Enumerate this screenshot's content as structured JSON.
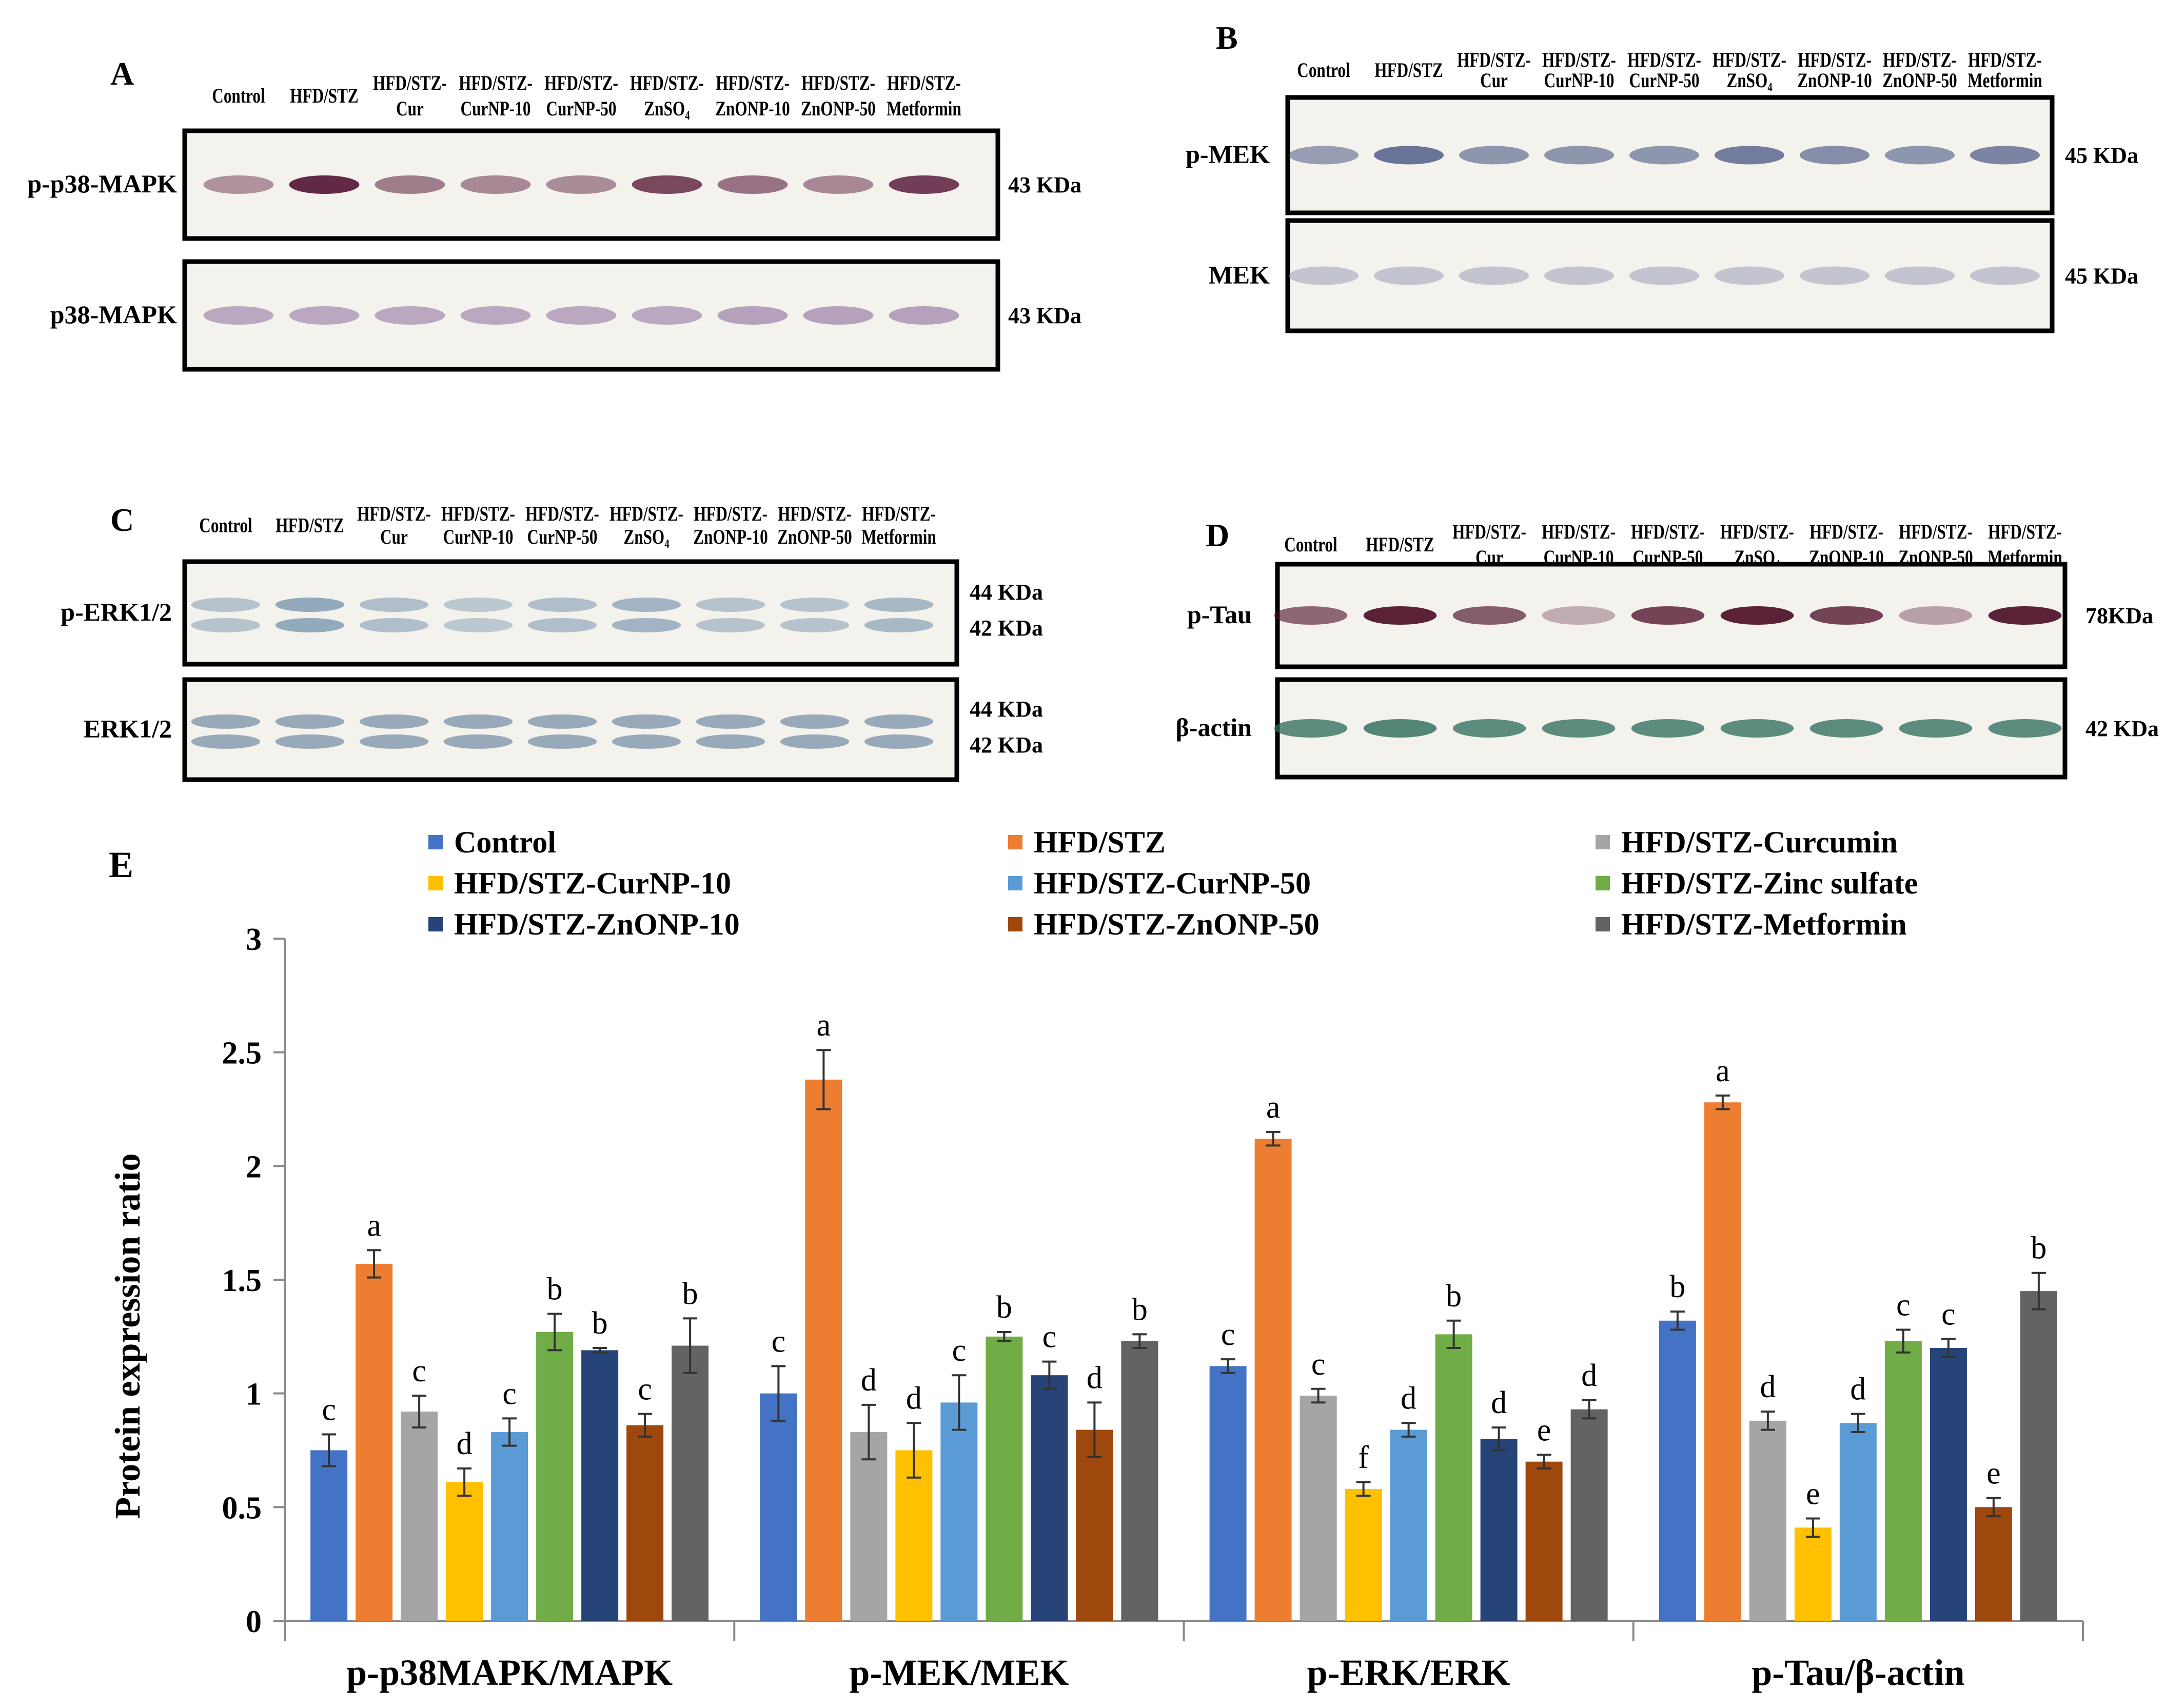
{
  "blots": {
    "A": {
      "letter": "A",
      "lanes": [
        [
          "Control"
        ],
        [
          "HFD/STZ"
        ],
        [
          "HFD/STZ-",
          "Cur"
        ],
        [
          "HFD/STZ-",
          "CurNP-10"
        ],
        [
          "HFD/STZ-",
          "CurNP-50"
        ],
        [
          "HFD/STZ-",
          "ZnSO₄"
        ],
        [
          "HFD/STZ-",
          "ZnONP-10"
        ],
        [
          "HFD/STZ-",
          "ZnONP-50"
        ],
        [
          "HFD/STZ-",
          "Metformin"
        ]
      ],
      "rows": [
        {
          "label": "p-p38-MAPK",
          "sizes": [
            "43 KDa"
          ],
          "band_color": "#5a1d3c",
          "band_intensity": [
            0.45,
            0.95,
            0.55,
            0.5,
            0.48,
            0.8,
            0.6,
            0.5,
            0.85
          ]
        },
        {
          "label": "p38-MAPK",
          "sizes": [
            "43 KDa"
          ],
          "band_color": "#8a6a9c",
          "band_intensity": [
            0.55,
            0.55,
            0.55,
            0.55,
            0.55,
            0.55,
            0.6,
            0.6,
            0.6
          ]
        }
      ]
    },
    "B": {
      "letter": "B",
      "lanes": [
        [
          "Control"
        ],
        [
          "HFD/STZ"
        ],
        [
          "HFD/STZ-",
          "Cur"
        ],
        [
          "HFD/STZ-",
          "CurNP-10"
        ],
        [
          "HFD/STZ-",
          "CurNP-50"
        ],
        [
          "HFD/STZ-",
          "ZnSO₄"
        ],
        [
          "HFD/STZ-",
          "ZnONP-10"
        ],
        [
          "HFD/STZ-",
          "ZnONP-50"
        ],
        [
          "HFD/STZ-",
          "Metformin"
        ]
      ],
      "rows": [
        {
          "label": "p-MEK",
          "sizes": [
            "45 KDa"
          ],
          "band_color": "#3a4a7c",
          "band_intensity": [
            0.5,
            0.75,
            0.55,
            0.55,
            0.55,
            0.7,
            0.6,
            0.55,
            0.65
          ]
        },
        {
          "label": "MEK",
          "sizes": [
            "45 KDa"
          ],
          "band_color": "#8a8ab0",
          "band_intensity": [
            0.45,
            0.45,
            0.45,
            0.45,
            0.45,
            0.45,
            0.45,
            0.45,
            0.45
          ]
        }
      ]
    },
    "C": {
      "letter": "C",
      "lanes": [
        [
          "Control"
        ],
        [
          "HFD/STZ"
        ],
        [
          "HFD/STZ-",
          "Cur"
        ],
        [
          "HFD/STZ-",
          "CurNP-10"
        ],
        [
          "HFD/STZ-",
          "CurNP-50"
        ],
        [
          "HFD/STZ-",
          "ZnSO₄"
        ],
        [
          "HFD/STZ-",
          "ZnONP-10"
        ],
        [
          "HFD/STZ-",
          "ZnONP-50"
        ],
        [
          "HFD/STZ-",
          "Metformin"
        ]
      ],
      "rows": [
        {
          "label": "p-ERK1/2",
          "sizes": [
            "44 KDa",
            "42 KDa"
          ],
          "band_color": "#6a8aa8",
          "band_intensity": [
            0.45,
            0.7,
            0.5,
            0.4,
            0.5,
            0.6,
            0.45,
            0.45,
            0.55
          ]
        },
        {
          "label": "ERK1/2",
          "sizes": [
            "44 KDa",
            "42 KDa"
          ],
          "band_color": "#5a7a98",
          "band_intensity": [
            0.6,
            0.6,
            0.6,
            0.6,
            0.6,
            0.6,
            0.6,
            0.6,
            0.6
          ]
        }
      ]
    },
    "D": {
      "letter": "D",
      "lanes": [
        [
          "Control"
        ],
        [
          "HFD/STZ"
        ],
        [
          "HFD/STZ-",
          "Cur"
        ],
        [
          "HFD/STZ-",
          "CurNP-10"
        ],
        [
          "HFD/STZ-",
          "CurNP-50"
        ],
        [
          "HFD/STZ-",
          "ZnSO₄"
        ],
        [
          "HFD/STZ-",
          "ZnONP-10"
        ],
        [
          "HFD/STZ-",
          "ZnONP-50"
        ],
        [
          "HFD/STZ-",
          "Metformin"
        ]
      ],
      "rows": [
        {
          "label": "p-Tau",
          "sizes": [
            "78KDa"
          ],
          "band_color": "#4a0a24",
          "band_intensity": [
            0.6,
            0.9,
            0.65,
            0.3,
            0.75,
            0.9,
            0.75,
            0.35,
            0.9
          ]
        },
        {
          "label": "β-actin",
          "sizes": [
            "42 KDa"
          ],
          "band_color": "#2a6a5a",
          "band_intensity": [
            0.75,
            0.8,
            0.75,
            0.75,
            0.75,
            0.75,
            0.75,
            0.75,
            0.75
          ]
        }
      ]
    }
  },
  "chart_data": {
    "type": "bar",
    "panel_letter": "E",
    "title": "",
    "xlabel": "",
    "ylabel": "Protein expression  ratio",
    "ylim": [
      0,
      3
    ],
    "yticks": [
      0,
      0.5,
      1,
      1.5,
      2,
      2.5,
      3
    ],
    "ytick_labels": [
      "0",
      "0.5",
      "1",
      "1.5",
      "2",
      "2.5",
      "3"
    ],
    "grid": false,
    "legend_position": "top",
    "categories": [
      "p-p38MAPK/MAPK",
      "p-MEK/MEK",
      "p-ERK/ERK",
      "p-Tau/β-actin"
    ],
    "series": [
      {
        "name": "Control",
        "color": "#4472c4",
        "values": [
          0.75,
          1.0,
          1.12,
          1.32
        ],
        "errors": [
          0.07,
          0.12,
          0.03,
          0.04
        ],
        "letters": [
          "c",
          "c",
          "c",
          "b"
        ]
      },
      {
        "name": "HFD/STZ",
        "color": "#ed7d31",
        "values": [
          1.57,
          2.38,
          2.12,
          2.28
        ],
        "errors": [
          0.06,
          0.13,
          0.03,
          0.03
        ],
        "letters": [
          "a",
          "a",
          "a",
          "a"
        ]
      },
      {
        "name": "HFD/STZ-Curcumin",
        "color": "#a5a5a5",
        "values": [
          0.92,
          0.83,
          0.99,
          0.88
        ],
        "errors": [
          0.07,
          0.12,
          0.03,
          0.04
        ],
        "letters": [
          "c",
          "d",
          "c",
          "d"
        ]
      },
      {
        "name": "HFD/STZ-CurNP-10",
        "color": "#ffc000",
        "values": [
          0.61,
          0.75,
          0.58,
          0.41
        ],
        "errors": [
          0.06,
          0.12,
          0.03,
          0.04
        ],
        "letters": [
          "d",
          "d",
          "f",
          "e"
        ]
      },
      {
        "name": "HFD/STZ-CurNP-50",
        "color": "#5b9bd5",
        "values": [
          0.83,
          0.96,
          0.84,
          0.87
        ],
        "errors": [
          0.06,
          0.12,
          0.03,
          0.04
        ],
        "letters": [
          "c",
          "c",
          "d",
          "d"
        ]
      },
      {
        "name": "HFD/STZ-Zinc sulfate",
        "color": "#70ad47",
        "values": [
          1.27,
          1.25,
          1.26,
          1.23
        ],
        "errors": [
          0.08,
          0.02,
          0.06,
          0.05
        ],
        "letters": [
          "b",
          "b",
          "b",
          "c"
        ]
      },
      {
        "name": "HFD/STZ-ZnONP-10",
        "color": "#264478",
        "values": [
          1.19,
          1.08,
          0.8,
          1.2
        ],
        "errors": [
          0.01,
          0.06,
          0.05,
          0.04
        ],
        "letters": [
          "b",
          "c",
          "d",
          "c"
        ]
      },
      {
        "name": "HFD/STZ-ZnONP-50",
        "color": "#9e480e",
        "values": [
          0.86,
          0.84,
          0.7,
          0.5
        ],
        "errors": [
          0.05,
          0.12,
          0.03,
          0.04
        ],
        "letters": [
          "c",
          "d",
          "e",
          "e"
        ]
      },
      {
        "name": "HFD/STZ-Metformin",
        "color": "#636363",
        "values": [
          1.21,
          1.23,
          0.93,
          1.45
        ],
        "errors": [
          0.12,
          0.03,
          0.04,
          0.08
        ],
        "letters": [
          "b",
          "b",
          "d",
          "b"
        ]
      }
    ]
  }
}
